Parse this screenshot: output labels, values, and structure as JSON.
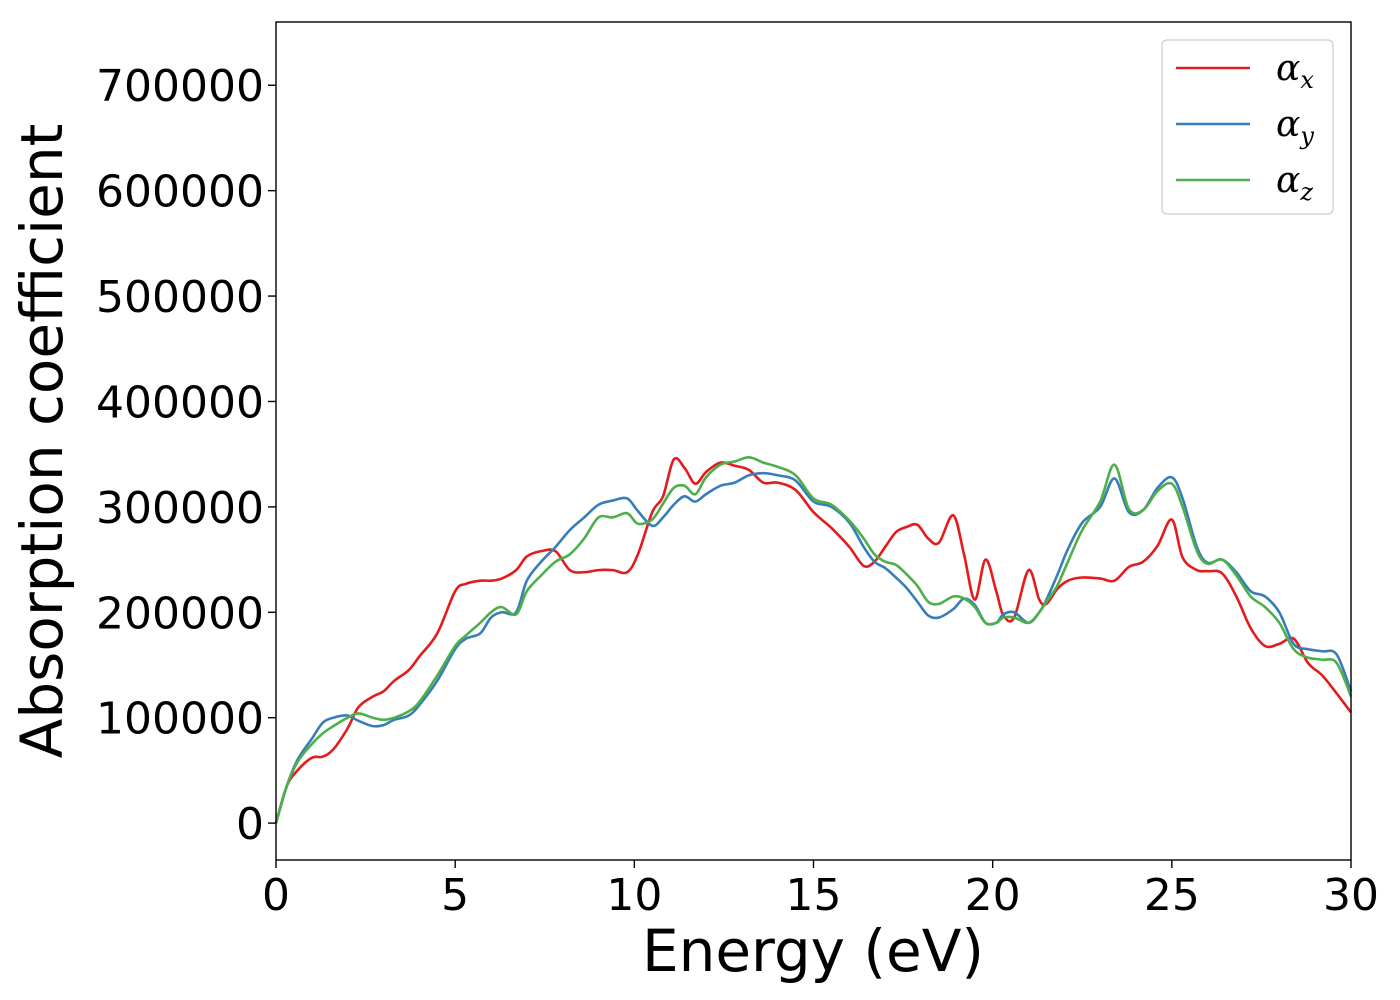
{
  "chart_data": {
    "type": "line",
    "title": "",
    "xlabel": "Energy (eV)",
    "ylabel": "Absorption coefficient",
    "xlim": [
      0,
      30
    ],
    "ylim": [
      -35000,
      760000
    ],
    "xticks": [
      0,
      5,
      10,
      15,
      20,
      25,
      30
    ],
    "xtick_labels": [
      "0",
      "5",
      "10",
      "15",
      "20",
      "25",
      "30"
    ],
    "yticks": [
      0,
      100000,
      200000,
      300000,
      400000,
      500000,
      600000,
      700000
    ],
    "ytick_labels": [
      "0",
      "100000",
      "200000",
      "300000",
      "400000",
      "500000",
      "600000",
      "700000"
    ],
    "grid": false,
    "legend_position": "top-right",
    "series": [
      {
        "name": "α_x",
        "label_main": "α",
        "label_sub": "x",
        "color": "#e41a1c",
        "x": [
          0,
          0.3,
          0.6,
          1.0,
          1.3,
          1.6,
          2.0,
          2.3,
          2.7,
          3.0,
          3.3,
          3.7,
          4.0,
          4.5,
          5.0,
          5.3,
          5.7,
          6.0,
          6.3,
          6.7,
          7.0,
          7.4,
          7.8,
          8.2,
          8.6,
          9.0,
          9.4,
          9.8,
          10.1,
          10.5,
          10.8,
          11.1,
          11.4,
          11.7,
          12.0,
          12.4,
          12.8,
          13.2,
          13.6,
          14.0,
          14.5,
          15.0,
          15.5,
          16.0,
          16.4,
          16.7,
          17.0,
          17.3,
          17.6,
          17.9,
          18.2,
          18.5,
          18.9,
          19.2,
          19.5,
          19.8,
          20.1,
          20.3,
          20.6,
          21.0,
          21.3,
          21.5,
          21.8,
          22.1,
          22.5,
          23.0,
          23.4,
          23.8,
          24.2,
          24.6,
          25.0,
          25.3,
          25.7,
          26.0,
          26.4,
          26.8,
          27.2,
          27.6,
          28.0,
          28.4,
          28.8,
          29.2,
          29.6,
          30.0
        ],
        "y": [
          0,
          35000,
          50000,
          62000,
          63000,
          70000,
          90000,
          110000,
          120000,
          125000,
          135000,
          145000,
          158000,
          180000,
          220000,
          227000,
          230000,
          230000,
          232000,
          240000,
          253000,
          258000,
          258000,
          240000,
          238000,
          240000,
          240000,
          238000,
          255000,
          295000,
          310000,
          345000,
          337000,
          322000,
          333000,
          342000,
          339000,
          335000,
          323000,
          323000,
          316000,
          295000,
          280000,
          262000,
          244000,
          248000,
          262000,
          276000,
          281000,
          283000,
          270000,
          266000,
          292000,
          255000,
          212000,
          250000,
          220000,
          197000,
          195000,
          240000,
          212000,
          208000,
          222000,
          230000,
          233000,
          232000,
          230000,
          243000,
          248000,
          263000,
          288000,
          252000,
          240000,
          239000,
          237000,
          215000,
          185000,
          168000,
          170000,
          175000,
          152000,
          140000,
          123000,
          105000
        ]
      },
      {
        "name": "α_y",
        "label_main": "α",
        "label_sub": "y",
        "color": "#377eb8",
        "x": [
          0,
          0.3,
          0.6,
          1.0,
          1.3,
          1.6,
          2.0,
          2.3,
          2.7,
          3.0,
          3.3,
          3.7,
          4.0,
          4.5,
          5.0,
          5.3,
          5.7,
          6.0,
          6.3,
          6.7,
          7.0,
          7.4,
          7.8,
          8.2,
          8.6,
          9.0,
          9.4,
          9.8,
          10.1,
          10.5,
          10.8,
          11.1,
          11.4,
          11.7,
          12.0,
          12.4,
          12.8,
          13.2,
          13.6,
          14.0,
          14.5,
          15.0,
          15.5,
          16.0,
          16.4,
          16.7,
          17.0,
          17.3,
          17.6,
          17.9,
          18.2,
          18.5,
          18.9,
          19.2,
          19.5,
          19.8,
          20.1,
          20.3,
          20.6,
          21.0,
          21.3,
          21.5,
          21.8,
          22.1,
          22.5,
          23.0,
          23.4,
          23.8,
          24.2,
          24.6,
          25.0,
          25.3,
          25.7,
          26.0,
          26.4,
          26.8,
          27.2,
          27.6,
          28.0,
          28.4,
          28.8,
          29.2,
          29.6,
          30.0
        ],
        "y": [
          0,
          35000,
          60000,
          80000,
          95000,
          100000,
          102000,
          97000,
          92000,
          93000,
          98000,
          102000,
          112000,
          135000,
          165000,
          175000,
          180000,
          195000,
          200000,
          200000,
          230000,
          248000,
          262000,
          278000,
          290000,
          302000,
          306000,
          308000,
          296000,
          282000,
          290000,
          302000,
          310000,
          305000,
          312000,
          320000,
          323000,
          330000,
          332000,
          330000,
          325000,
          305000,
          300000,
          285000,
          262000,
          248000,
          242000,
          233000,
          223000,
          210000,
          197000,
          195000,
          203000,
          213000,
          207000,
          190000,
          190000,
          198000,
          200000,
          190000,
          200000,
          212000,
          235000,
          260000,
          285000,
          300000,
          327000,
          295000,
          297000,
          318000,
          328000,
          308000,
          262000,
          247000,
          250000,
          238000,
          220000,
          215000,
          200000,
          170000,
          165000,
          163000,
          160000,
          125000
        ]
      },
      {
        "name": "α_z",
        "label_main": "α",
        "label_sub": "z",
        "color": "#4daf4a",
        "x": [
          0,
          0.3,
          0.6,
          1.0,
          1.3,
          1.6,
          2.0,
          2.3,
          2.7,
          3.0,
          3.3,
          3.7,
          4.0,
          4.5,
          5.0,
          5.3,
          5.7,
          6.0,
          6.3,
          6.7,
          7.0,
          7.4,
          7.8,
          8.2,
          8.6,
          9.0,
          9.4,
          9.8,
          10.1,
          10.5,
          10.8,
          11.1,
          11.4,
          11.7,
          12.0,
          12.4,
          12.8,
          13.2,
          13.6,
          14.0,
          14.5,
          15.0,
          15.5,
          16.0,
          16.4,
          16.7,
          17.0,
          17.3,
          17.6,
          17.9,
          18.2,
          18.5,
          18.9,
          19.2,
          19.5,
          19.8,
          20.1,
          20.3,
          20.6,
          21.0,
          21.3,
          21.5,
          21.8,
          22.1,
          22.5,
          23.0,
          23.4,
          23.8,
          24.2,
          24.6,
          25.0,
          25.3,
          25.7,
          26.0,
          26.4,
          26.8,
          27.2,
          27.6,
          28.0,
          28.4,
          28.8,
          29.2,
          29.6,
          30.0
        ],
        "y": [
          0,
          35000,
          58000,
          75000,
          85000,
          92000,
          100000,
          104000,
          100000,
          98000,
          100000,
          106000,
          115000,
          140000,
          168000,
          178000,
          190000,
          200000,
          205000,
          198000,
          220000,
          235000,
          248000,
          255000,
          270000,
          290000,
          290000,
          294000,
          284000,
          288000,
          303000,
          318000,
          320000,
          312000,
          328000,
          340000,
          343000,
          347000,
          342000,
          338000,
          330000,
          308000,
          302000,
          287000,
          270000,
          255000,
          248000,
          245000,
          236000,
          225000,
          210000,
          208000,
          215000,
          213000,
          205000,
          190000,
          190000,
          195000,
          195000,
          190000,
          200000,
          210000,
          225000,
          248000,
          278000,
          305000,
          340000,
          298000,
          297000,
          315000,
          322000,
          300000,
          258000,
          246000,
          250000,
          235000,
          215000,
          205000,
          190000,
          165000,
          157000,
          155000,
          152000,
          120000
        ]
      }
    ]
  }
}
